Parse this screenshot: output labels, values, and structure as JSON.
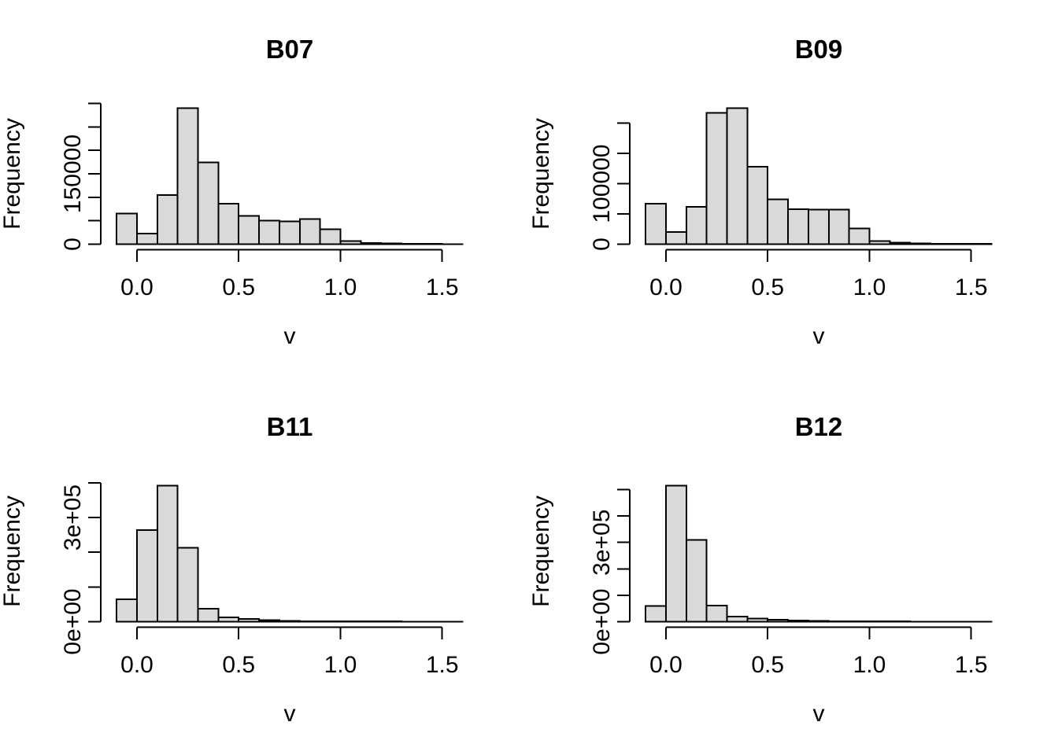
{
  "figure": {
    "background": "#ffffff",
    "bar_fill": "#d9d9d9",
    "bar_stroke": "#000000",
    "axis_color": "#000000",
    "text_color": "#000000"
  },
  "chart_data": [
    {
      "type": "bar",
      "chart_kind": "histogram",
      "title": "B07",
      "xlabel": "v",
      "ylabel": "Frequency",
      "bin_start": -0.1,
      "bin_width": 0.1,
      "xlim": [
        -0.1,
        1.6
      ],
      "counts": [
        65000,
        23000,
        105000,
        290000,
        174000,
        86000,
        60000,
        50000,
        49000,
        54000,
        32000,
        7000,
        2800,
        1500,
        900,
        600,
        400
      ],
      "x_ticks": [
        0,
        0.5,
        1,
        1.5
      ],
      "x_tick_labels": [
        "0.0",
        "0.5",
        "1.0",
        "1.5"
      ],
      "y_tick_step": 50000,
      "y_tick_max": 300000,
      "y_tick_labels": {
        "0": "0",
        "150000": "150000"
      },
      "grid": false,
      "legend": null
    },
    {
      "type": "bar",
      "chart_kind": "histogram",
      "title": "B09",
      "xlabel": "v",
      "ylabel": "Frequency",
      "bin_start": -0.1,
      "bin_width": 0.1,
      "xlim": [
        -0.1,
        1.6
      ],
      "counts": [
        67000,
        20000,
        62000,
        217000,
        225000,
        128000,
        74000,
        58000,
        57000,
        57000,
        26000,
        5500,
        2500,
        1400,
        800,
        500,
        400
      ],
      "x_ticks": [
        0,
        0.5,
        1,
        1.5
      ],
      "x_tick_labels": [
        "0.0",
        "0.5",
        "1.0",
        "1.5"
      ],
      "y_tick_step": 50000,
      "y_tick_max": 200000,
      "y_tick_labels": {
        "0": "0",
        "100000": "100000"
      },
      "grid": false,
      "legend": null
    },
    {
      "type": "bar",
      "chart_kind": "histogram",
      "title": "B11",
      "xlabel": "v",
      "ylabel": "Frequency",
      "bin_start": -0.1,
      "bin_width": 0.1,
      "xlim": [
        -0.1,
        1.6
      ],
      "counts": [
        65000,
        264000,
        392000,
        213000,
        37000,
        13000,
        7500,
        4000,
        2500,
        1600,
        1100,
        900,
        700,
        600,
        500,
        400,
        300
      ],
      "x_ticks": [
        0,
        0.5,
        1,
        1.5
      ],
      "x_tick_labels": [
        "0.0",
        "0.5",
        "1.0",
        "1.5"
      ],
      "y_tick_step": 100000,
      "y_tick_max": 400000,
      "y_tick_labels": {
        "0": "0e+00",
        "300000": "3e+05"
      },
      "grid": false,
      "legend": null
    },
    {
      "type": "bar",
      "chart_kind": "histogram",
      "title": "B12",
      "xlabel": "v",
      "ylabel": "Frequency",
      "bin_start": -0.1,
      "bin_width": 0.1,
      "xlim": [
        -0.1,
        1.6
      ],
      "counts": [
        60000,
        515000,
        310000,
        61000,
        20000,
        12000,
        7500,
        4800,
        3000,
        2000,
        1500,
        1200,
        900,
        700,
        600,
        450,
        350
      ],
      "x_ticks": [
        0,
        0.5,
        1,
        1.5
      ],
      "x_tick_labels": [
        "0.0",
        "0.5",
        "1.0",
        "1.5"
      ],
      "y_tick_step": 100000,
      "y_tick_max": 500000,
      "y_tick_labels": {
        "0": "0e+00",
        "300000": "3e+05"
      },
      "grid": false,
      "legend": null
    }
  ]
}
